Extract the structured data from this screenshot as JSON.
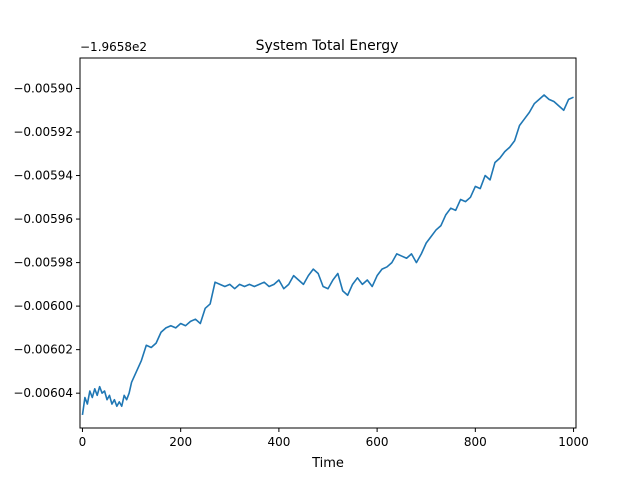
{
  "chart_data": {
    "type": "line",
    "title": "System Total Energy",
    "xlabel": "Time",
    "ylabel": "",
    "offset_text": "−1.9658e2",
    "xlim": [
      -5,
      1005
    ],
    "ylim": [
      -0.006056,
      -0.005886
    ],
    "x_ticks": [
      0,
      200,
      400,
      600,
      800,
      1000
    ],
    "y_ticks": [
      -0.00604,
      -0.00602,
      -0.006,
      -0.00598,
      -0.00596,
      -0.00594,
      -0.00592,
      -0.0059
    ],
    "y_tick_labels": [
      "−0.00604",
      "−0.00602",
      "−0.00600",
      "−0.00598",
      "−0.00596",
      "−0.00594",
      "−0.00592",
      "−0.00590"
    ],
    "grid": false,
    "legend": "none",
    "series": [
      {
        "color": "#1f77b4",
        "x": [
          0,
          5,
          10,
          15,
          20,
          25,
          30,
          35,
          40,
          45,
          50,
          55,
          60,
          65,
          70,
          75,
          80,
          85,
          90,
          95,
          100,
          110,
          120,
          130,
          140,
          150,
          160,
          170,
          180,
          190,
          200,
          210,
          220,
          230,
          240,
          250,
          260,
          270,
          280,
          290,
          300,
          310,
          320,
          330,
          340,
          350,
          360,
          370,
          380,
          390,
          400,
          410,
          420,
          430,
          440,
          450,
          460,
          470,
          480,
          490,
          500,
          510,
          520,
          530,
          540,
          550,
          560,
          570,
          580,
          590,
          600,
          610,
          620,
          630,
          640,
          650,
          660,
          670,
          680,
          690,
          700,
          710,
          720,
          730,
          740,
          750,
          760,
          770,
          780,
          790,
          800,
          810,
          820,
          830,
          840,
          850,
          860,
          870,
          880,
          890,
          900,
          910,
          920,
          930,
          940,
          950,
          960,
          970,
          980,
          990,
          1000
        ],
        "y": [
          -0.00605,
          -0.006042,
          -0.006045,
          -0.006039,
          -0.006042,
          -0.006038,
          -0.006041,
          -0.006037,
          -0.00604,
          -0.006039,
          -0.006043,
          -0.006041,
          -0.006045,
          -0.006043,
          -0.006046,
          -0.006044,
          -0.006046,
          -0.006041,
          -0.006043,
          -0.00604,
          -0.006035,
          -0.00603,
          -0.006025,
          -0.006018,
          -0.006019,
          -0.006017,
          -0.006012,
          -0.00601,
          -0.006009,
          -0.00601,
          -0.006008,
          -0.006009,
          -0.006007,
          -0.006006,
          -0.006008,
          -0.006001,
          -0.005999,
          -0.005989,
          -0.00599,
          -0.005991,
          -0.00599,
          -0.005992,
          -0.00599,
          -0.005991,
          -0.00599,
          -0.005991,
          -0.00599,
          -0.005989,
          -0.005991,
          -0.00599,
          -0.005988,
          -0.005992,
          -0.00599,
          -0.005986,
          -0.005988,
          -0.00599,
          -0.005986,
          -0.005983,
          -0.005985,
          -0.005991,
          -0.005992,
          -0.005988,
          -0.005985,
          -0.005993,
          -0.005995,
          -0.00599,
          -0.005987,
          -0.00599,
          -0.005988,
          -0.005991,
          -0.005986,
          -0.005983,
          -0.005982,
          -0.00598,
          -0.005976,
          -0.005977,
          -0.005978,
          -0.005976,
          -0.00598,
          -0.005976,
          -0.005971,
          -0.005968,
          -0.005965,
          -0.005963,
          -0.005958,
          -0.005955,
          -0.005956,
          -0.005951,
          -0.005952,
          -0.00595,
          -0.005945,
          -0.005946,
          -0.00594,
          -0.005942,
          -0.005934,
          -0.005932,
          -0.005929,
          -0.005927,
          -0.005924,
          -0.005917,
          -0.005914,
          -0.005911,
          -0.005907,
          -0.005905,
          -0.005903,
          -0.005905,
          -0.005906,
          -0.005908,
          -0.00591,
          -0.005905,
          -0.005904
        ]
      }
    ]
  }
}
